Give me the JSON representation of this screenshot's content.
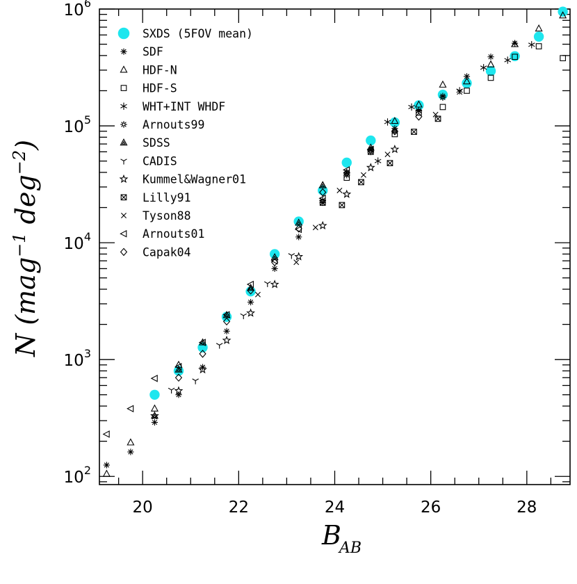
{
  "chart_data": {
    "type": "scatter",
    "title": "",
    "xlabel": "B",
    "xlabel_subscript": "AB",
    "ylabel_parts": [
      "N (mag",
      "−1",
      " deg",
      "−2",
      ")"
    ],
    "xlim": [
      19.1,
      28.9
    ],
    "ylim_log10": [
      1.93,
      6.0
    ],
    "x_ticks": [
      20,
      22,
      24,
      26,
      28
    ],
    "x_tick_labels": [
      "20",
      "22",
      "24",
      "26",
      "28"
    ],
    "y_ticks": [
      {
        "base": "10",
        "exp": "2",
        "value": 100
      },
      {
        "base": "10",
        "exp": "3",
        "value": 1000
      },
      {
        "base": "10",
        "exp": "4",
        "value": 10000
      },
      {
        "base": "10",
        "exp": "5",
        "value": 100000
      },
      {
        "base": "10",
        "exp": "6",
        "value": 1000000
      }
    ],
    "legend_position": "top-left",
    "series": [
      {
        "name": "SXDS (5FOV mean)",
        "marker": "cyan-circle",
        "points": [
          [
            20.25,
            500
          ],
          [
            20.75,
            800
          ],
          [
            21.25,
            1270
          ],
          [
            21.75,
            2320
          ],
          [
            22.25,
            3830
          ],
          [
            22.75,
            8000
          ],
          [
            23.25,
            15200
          ],
          [
            23.75,
            28000
          ],
          [
            24.25,
            48500
          ],
          [
            24.75,
            75000
          ],
          [
            25.25,
            107000
          ],
          [
            25.75,
            150000
          ],
          [
            26.25,
            185000
          ],
          [
            26.75,
            232000
          ],
          [
            27.25,
            295000
          ],
          [
            27.75,
            395000
          ],
          [
            28.25,
            580000
          ],
          [
            28.75,
            950000
          ]
        ]
      },
      {
        "name": "SDF",
        "marker": "asterisk",
        "points": [
          [
            19.25,
            125
          ],
          [
            19.75,
            162
          ],
          [
            20.25,
            290
          ],
          [
            20.75,
            500
          ],
          [
            21.25,
            860
          ],
          [
            21.75,
            1750
          ],
          [
            22.25,
            3100
          ],
          [
            22.75,
            6000
          ],
          [
            23.25,
            11200
          ],
          [
            23.75,
            22000
          ],
          [
            24.25,
            40000
          ],
          [
            24.75,
            63000
          ],
          [
            25.25,
            95000
          ],
          [
            25.75,
            135000
          ],
          [
            26.25,
            180000
          ],
          [
            26.75,
            265000
          ],
          [
            27.25,
            390000
          ],
          [
            27.75,
            510000
          ]
        ]
      },
      {
        "name": "HDF-N",
        "marker": "triangle",
        "points": [
          [
            19.25,
            105
          ],
          [
            19.75,
            195
          ],
          [
            20.25,
            380
          ],
          [
            20.75,
            900
          ],
          [
            23.75,
            31000
          ],
          [
            24.75,
            65000
          ],
          [
            25.25,
            110000
          ],
          [
            25.75,
            152000
          ],
          [
            26.25,
            225000
          ],
          [
            26.75,
            240000
          ],
          [
            27.25,
            335000
          ],
          [
            27.75,
            500000
          ],
          [
            28.25,
            680000
          ],
          [
            28.75,
            880000
          ]
        ]
      },
      {
        "name": "HDF-S",
        "marker": "square",
        "points": [
          [
            24.25,
            36000
          ],
          [
            24.75,
            60000
          ],
          [
            25.25,
            85000
          ],
          [
            25.75,
            130000
          ],
          [
            26.25,
            145000
          ],
          [
            26.75,
            200000
          ],
          [
            27.25,
            258000
          ],
          [
            27.75,
            390000
          ],
          [
            28.25,
            480000
          ],
          [
            28.75,
            380000
          ]
        ]
      },
      {
        "name": "WHT+INT WHDF",
        "marker": "star6",
        "points": [
          [
            24.9,
            50000
          ],
          [
            25.1,
            108000
          ],
          [
            25.6,
            145000
          ],
          [
            26.6,
            200000
          ],
          [
            27.1,
            315000
          ],
          [
            27.6,
            365000
          ],
          [
            28.1,
            495000
          ]
        ]
      },
      {
        "name": "Arnouts99",
        "marker": "sunflower",
        "points": [
          [
            23.75,
            23000
          ],
          [
            24.25,
            38000
          ],
          [
            24.75,
            60000
          ],
          [
            25.25,
            90000
          ],
          [
            25.75,
            135000
          ],
          [
            26.25,
            175000
          ]
        ]
      },
      {
        "name": "SDSS",
        "marker": "filled-triangle",
        "points": [
          [
            20.25,
            330
          ],
          [
            20.75,
            820
          ],
          [
            21.25,
            1400
          ],
          [
            21.75,
            2400
          ],
          [
            22.25,
            4100
          ],
          [
            22.75,
            7500
          ],
          [
            23.25,
            14800
          ],
          [
            23.75,
            31000
          ]
        ]
      },
      {
        "name": "CADIS",
        "marker": "three-prong",
        "points": [
          [
            20.6,
            550
          ],
          [
            21.1,
            660
          ],
          [
            21.6,
            1330
          ],
          [
            22.1,
            2380
          ],
          [
            22.6,
            4480
          ],
          [
            23.1,
            7800
          ]
        ]
      },
      {
        "name": "Kummel&Wagner01",
        "marker": "star5",
        "points": [
          [
            20.25,
            330
          ],
          [
            20.75,
            540
          ],
          [
            21.25,
            820
          ],
          [
            21.75,
            1460
          ],
          [
            22.25,
            2500
          ],
          [
            22.75,
            4400
          ],
          [
            23.25,
            7600
          ],
          [
            23.75,
            14000
          ],
          [
            24.25,
            26000
          ],
          [
            24.75,
            44000
          ],
          [
            25.25,
            63000
          ]
        ]
      },
      {
        "name": "Lilly91",
        "marker": "square-x",
        "points": [
          [
            23.75,
            22000
          ],
          [
            24.15,
            21000
          ],
          [
            24.55,
            33000
          ],
          [
            25.15,
            48000
          ],
          [
            25.65,
            89000
          ],
          [
            26.15,
            115000
          ]
        ]
      },
      {
        "name": "Tyson88",
        "marker": "cross",
        "points": [
          [
            22.4,
            3600
          ],
          [
            23.2,
            6800
          ],
          [
            23.6,
            13500
          ],
          [
            24.1,
            28000
          ],
          [
            24.6,
            38000
          ],
          [
            25.1,
            57000
          ],
          [
            26.1,
            125000
          ],
          [
            26.6,
            195000
          ]
        ]
      },
      {
        "name": "Arnouts01",
        "marker": "triangle-left",
        "points": [
          [
            19.25,
            230
          ],
          [
            19.75,
            380
          ],
          [
            20.25,
            690
          ],
          [
            20.75,
            870
          ],
          [
            21.25,
            1400
          ],
          [
            21.75,
            2420
          ],
          [
            22.25,
            4400
          ],
          [
            22.75,
            7000
          ],
          [
            23.25,
            13000
          ],
          [
            23.75,
            24000
          ],
          [
            24.25,
            42000
          ],
          [
            24.75,
            63000
          ]
        ]
      },
      {
        "name": "Capak04",
        "marker": "diamond",
        "points": [
          [
            20.75,
            700
          ],
          [
            21.25,
            1120
          ],
          [
            21.75,
            2120
          ],
          [
            22.25,
            3900
          ],
          [
            22.75,
            6800
          ],
          [
            23.25,
            13200
          ],
          [
            23.75,
            27000
          ],
          [
            24.25,
            39500
          ],
          [
            24.75,
            62000
          ],
          [
            25.25,
            90000
          ],
          [
            25.75,
            120000
          ]
        ]
      }
    ]
  }
}
